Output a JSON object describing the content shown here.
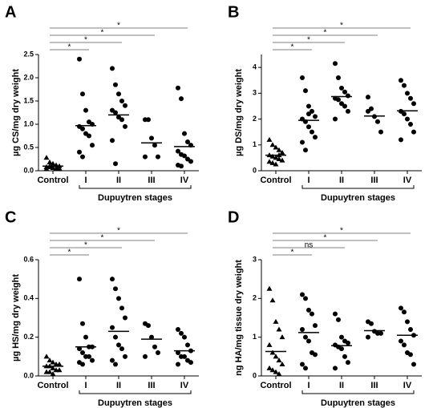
{
  "chart_data": [
    {
      "type": "strip",
      "title": "A",
      "ylabel": "µg CS/mg dry weight",
      "xlabel": "Dupuytren stages",
      "categories": [
        "Control",
        "I",
        "II",
        "III",
        "IV"
      ],
      "markers": [
        "triangle",
        "circle",
        "circle",
        "circle",
        "circle"
      ],
      "color": "#000000",
      "values": [
        [
          0.28,
          0.18,
          0.15,
          0.12,
          0.1,
          0.08,
          0.08,
          0.06,
          0.05,
          0.05,
          0.04,
          0.1,
          0.12
        ],
        [
          2.4,
          1.65,
          1.3,
          1.05,
          1.0,
          0.95,
          0.9,
          0.8,
          0.75,
          0.55,
          0.4,
          0.3
        ],
        [
          2.2,
          1.85,
          1.65,
          1.5,
          1.4,
          1.3,
          1.25,
          1.15,
          1.1,
          0.95,
          0.65,
          0.15
        ],
        [
          1.1,
          1.1,
          0.7,
          0.55,
          0.3,
          0.3
        ],
        [
          1.78,
          1.55,
          0.8,
          0.62,
          0.55,
          0.42,
          0.35,
          0.32,
          0.25,
          0.2,
          0.12,
          0.1
        ]
      ],
      "means": [
        0.1,
        0.97,
        1.2,
        0.6,
        0.52
      ],
      "ylim": [
        0,
        2.5
      ],
      "yticks": [
        {
          "value": 0,
          "label": "0.0"
        },
        0.5,
        {
          "value": 1,
          "label": "1.0"
        },
        1.5,
        {
          "value": 2,
          "label": "2.0"
        },
        2.5
      ],
      "significance": [
        {
          "to": "I",
          "label": "*"
        },
        {
          "to": "II",
          "label": "*"
        },
        {
          "to": "III",
          "label": "*"
        },
        {
          "to": "IV",
          "label": "*"
        }
      ]
    },
    {
      "type": "strip",
      "title": "B",
      "ylabel": "µg DS/mg dry weight",
      "xlabel": "Dupuytren stages",
      "categories": [
        "Control",
        "I",
        "II",
        "III",
        "IV"
      ],
      "markers": [
        "triangle",
        "circle",
        "circle",
        "circle",
        "circle"
      ],
      "color": "#000000",
      "values": [
        [
          1.2,
          1.0,
          0.9,
          0.8,
          0.7,
          0.6,
          0.55,
          0.5,
          0.45,
          0.4,
          0.35,
          0.3,
          0.25,
          0.6
        ],
        [
          3.6,
          3.1,
          2.5,
          2.3,
          2.1,
          2.0,
          1.9,
          1.7,
          1.5,
          1.3,
          1.1,
          0.8,
          2.2
        ],
        [
          4.15,
          3.6,
          3.2,
          3.05,
          2.9,
          2.8,
          2.75,
          2.6,
          2.5,
          2.3,
          2.0
        ],
        [
          2.85,
          2.4,
          2.1,
          1.9,
          1.5,
          2.3
        ],
        [
          3.5,
          3.3,
          3.0,
          2.8,
          2.6,
          2.3,
          2.2,
          2.0,
          1.8,
          1.5,
          1.2
        ]
      ],
      "means": [
        0.6,
        1.95,
        2.87,
        2.12,
        2.32
      ],
      "ylim": [
        0,
        4.5
      ],
      "yticks": [
        0,
        1,
        2,
        3,
        4
      ],
      "significance": [
        {
          "to": "I",
          "label": "*"
        },
        {
          "to": "II",
          "label": "*"
        },
        {
          "to": "III",
          "label": "*"
        },
        {
          "to": "IV",
          "label": "*"
        }
      ]
    },
    {
      "type": "strip",
      "title": "C",
      "ylabel": "µg HS/mg dry weight",
      "xlabel": "Dupuytren stages",
      "categories": [
        "Control",
        "I",
        "II",
        "III",
        "IV"
      ],
      "markers": [
        "triangle",
        "circle",
        "circle",
        "circle",
        "circle"
      ],
      "color": "#000000",
      "values": [
        [
          0.1,
          0.08,
          0.07,
          0.06,
          0.06,
          0.05,
          0.05,
          0.04,
          0.03,
          0.03,
          0.02,
          0.02,
          0.01
        ],
        [
          0.5,
          0.27,
          0.2,
          0.15,
          0.15,
          0.14,
          0.12,
          0.1,
          0.1,
          0.08,
          0.07,
          0.06
        ],
        [
          0.5,
          0.45,
          0.4,
          0.35,
          0.3,
          0.25,
          0.2,
          0.16,
          0.14,
          0.1,
          0.08,
          0.06
        ],
        [
          0.27,
          0.26,
          0.2,
          0.15,
          0.12,
          0.1
        ],
        [
          0.24,
          0.22,
          0.2,
          0.16,
          0.13,
          0.12,
          0.1,
          0.1,
          0.08,
          0.07,
          0.06
        ]
      ],
      "means": [
        0.05,
        0.15,
        0.23,
        0.19,
        0.13
      ],
      "ylim": [
        0,
        0.6
      ],
      "yticks": [
        {
          "value": 0,
          "label": "0.0"
        },
        0.2,
        0.4,
        0.6
      ],
      "significance": [
        {
          "to": "I",
          "label": "*"
        },
        {
          "to": "II",
          "label": "*"
        },
        {
          "to": "III",
          "label": "*"
        },
        {
          "to": "IV",
          "label": "*"
        }
      ]
    },
    {
      "type": "strip",
      "title": "D",
      "ylabel": "ng HA/mg tissue dry weight",
      "xlabel": "Dupuytren stages",
      "categories": [
        "Control",
        "I",
        "II",
        "III",
        "IV"
      ],
      "markers": [
        "triangle",
        "circle",
        "circle",
        "circle",
        "circle"
      ],
      "color": "#000000",
      "values": [
        [
          2.25,
          1.95,
          1.4,
          1.2,
          1.0,
          0.8,
          0.6,
          0.5,
          0.4,
          0.3,
          0.2,
          0.15,
          0.1,
          0.05
        ],
        [
          2.1,
          2.0,
          1.7,
          1.6,
          1.3,
          1.2,
          1.0,
          0.9,
          0.6,
          0.55,
          0.3,
          0.2
        ],
        [
          1.6,
          1.45,
          1.0,
          0.9,
          0.85,
          0.8,
          0.75,
          0.7,
          0.5,
          0.35,
          0.2
        ],
        [
          1.4,
          1.35,
          1.15,
          1.1,
          1.1,
          1.0
        ],
        [
          1.75,
          1.65,
          1.4,
          1.2,
          1.05,
          0.9,
          0.8,
          0.6,
          0.55,
          0.3
        ]
      ],
      "means": [
        0.63,
        1.12,
        0.78,
        1.17,
        1.05
      ],
      "ylim": [
        0,
        3
      ],
      "yticks": [
        0,
        1,
        2,
        3
      ],
      "significance": [
        {
          "to": "I",
          "label": "*"
        },
        {
          "to": "II",
          "label": "ns"
        },
        {
          "to": "III",
          "label": "*"
        },
        {
          "to": "IV",
          "label": "*"
        }
      ]
    }
  ]
}
